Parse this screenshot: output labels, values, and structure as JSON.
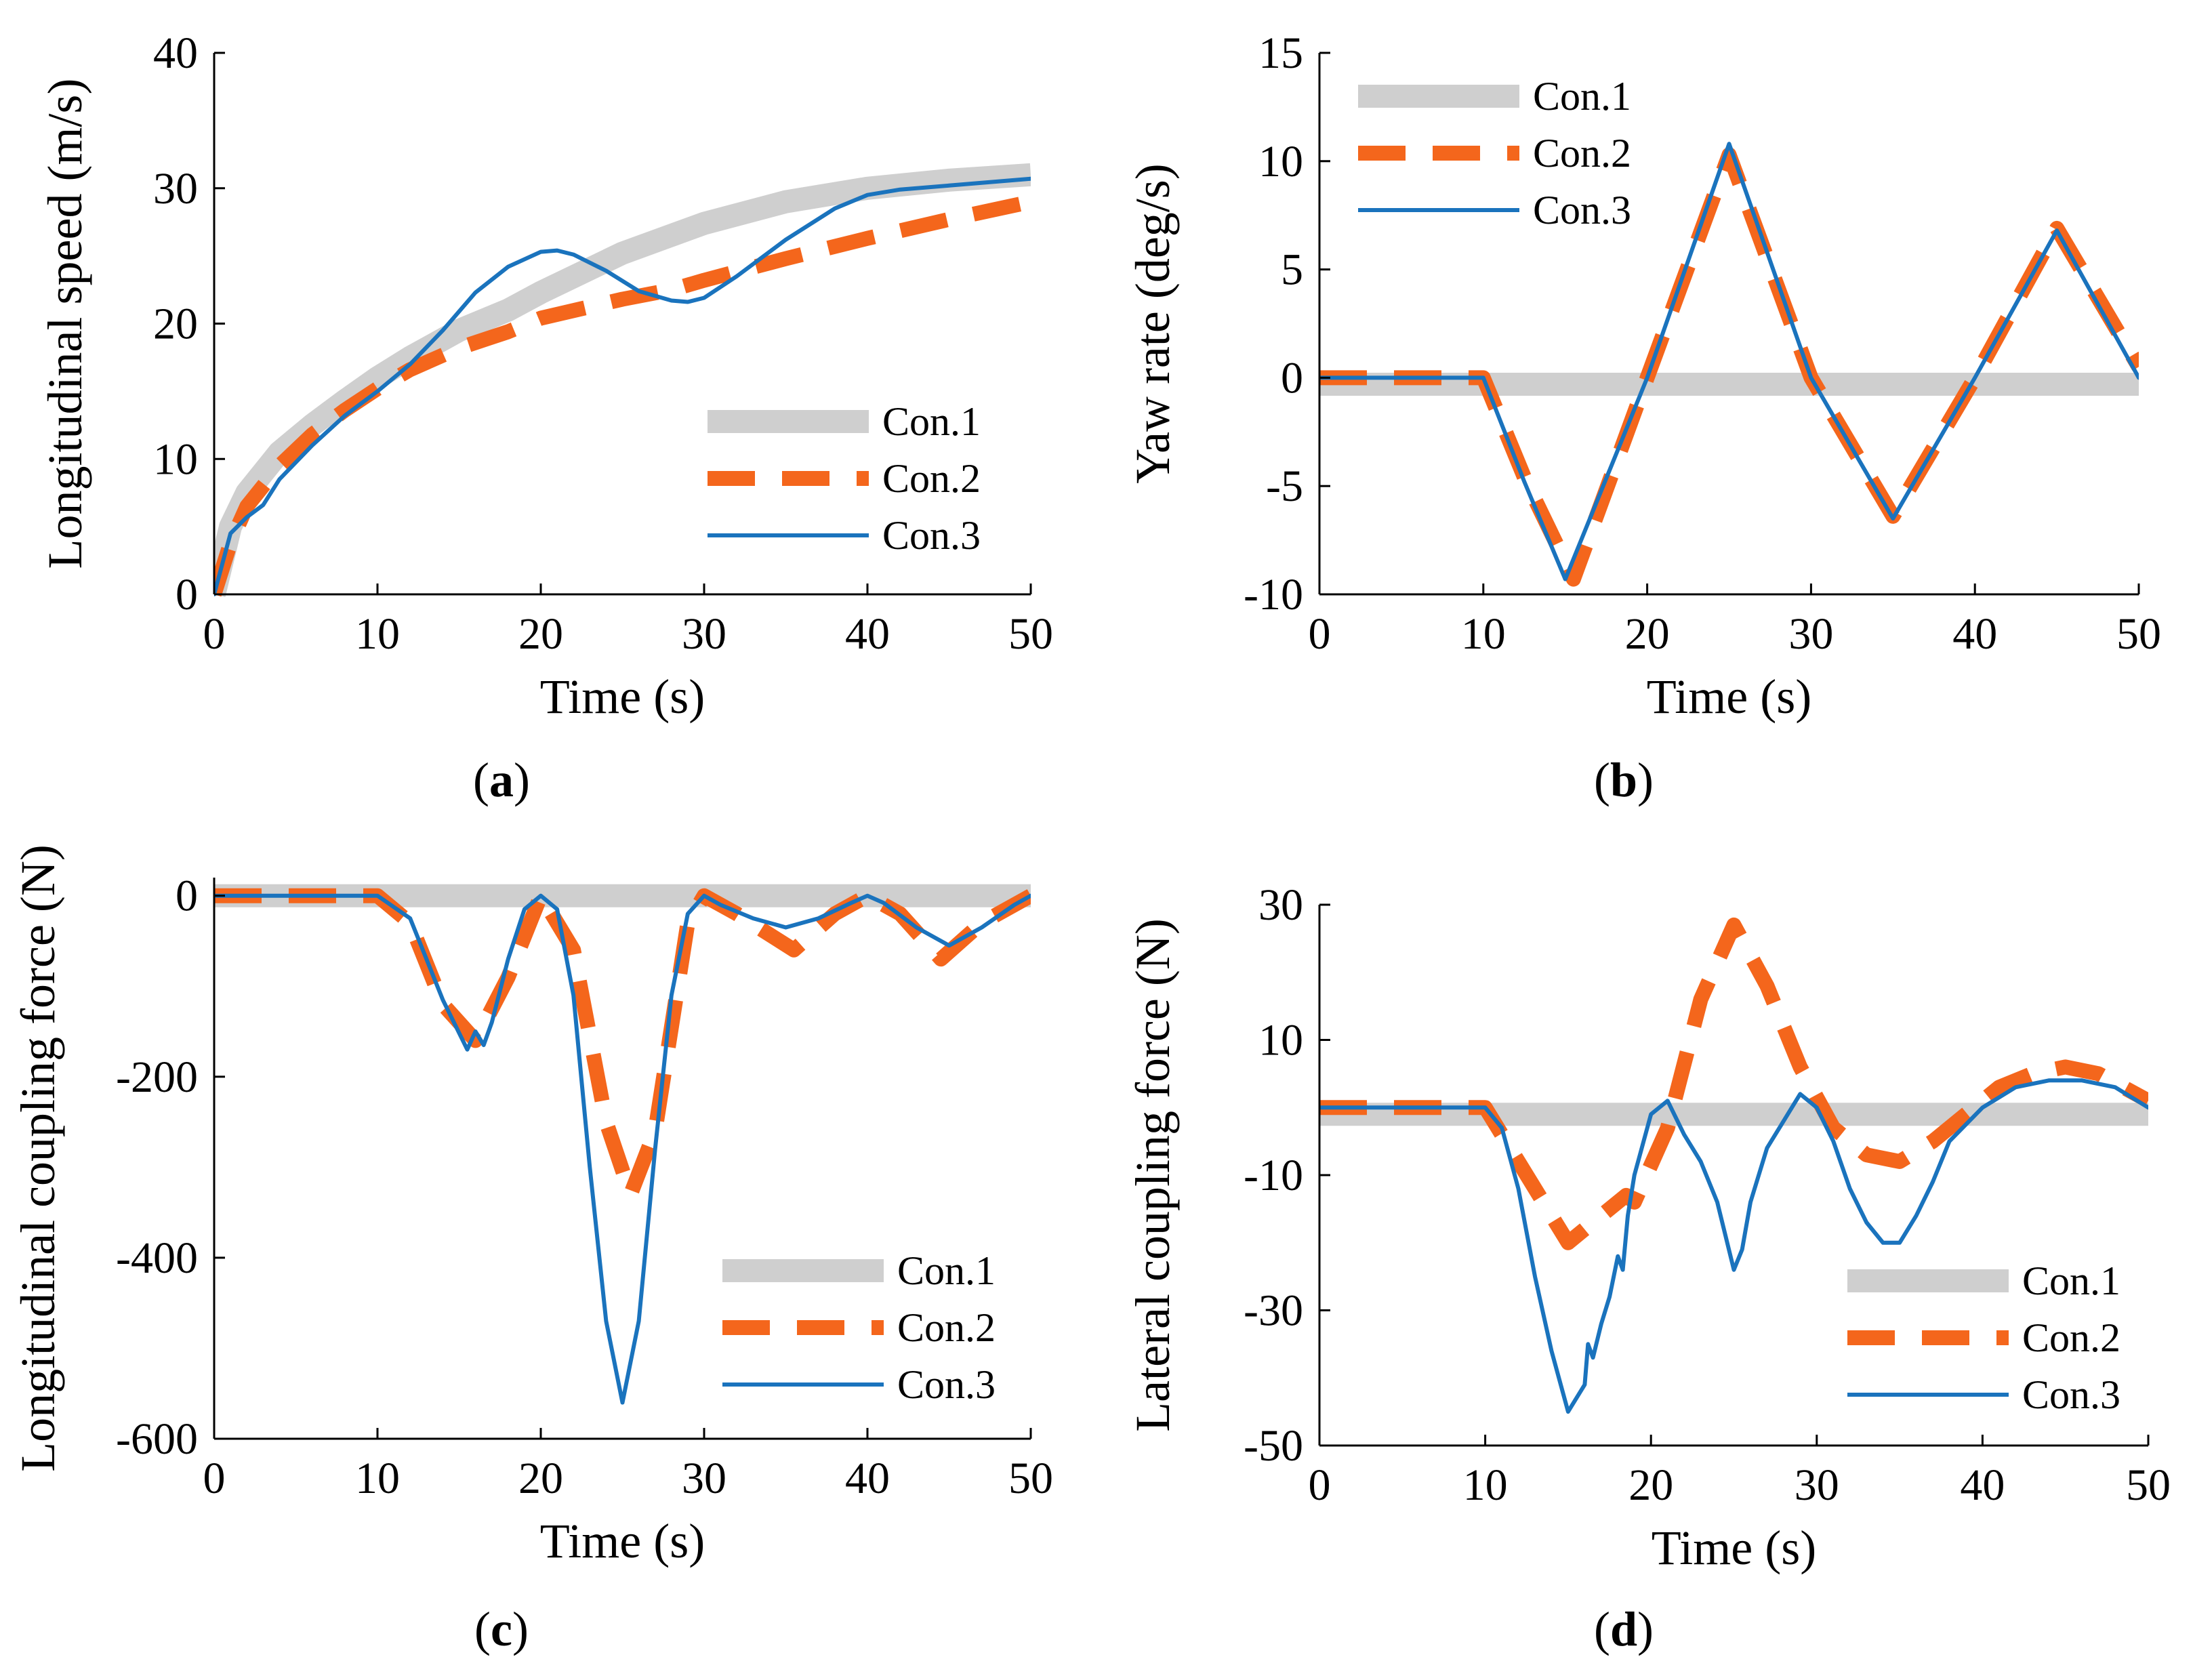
{
  "colors": {
    "con1": "#cfcfcf",
    "con2": "#f4661c",
    "con3": "#1a73bd"
  },
  "legend_labels": [
    "Con.1",
    "Con.2",
    "Con.3"
  ],
  "chart_data": [
    {
      "id": "a",
      "type": "line",
      "caption_letter": "a",
      "xlabel": "Time (s)",
      "ylabel": "Longitudinal speed (m/s)",
      "xlim": [
        0,
        50
      ],
      "ylim": [
        0,
        40
      ],
      "xticks": [
        0,
        10,
        20,
        30,
        40,
        50
      ],
      "yticks": [
        0,
        10,
        20,
        30,
        40
      ],
      "legend_position": "bottom-right",
      "series": [
        {
          "name": "Con.1",
          "x": [
            0,
            1,
            2,
            4,
            6,
            8,
            10,
            12,
            15,
            18,
            20,
            25,
            30,
            35,
            40,
            45,
            50
          ],
          "y": [
            0,
            5,
            7.5,
            10.5,
            12.5,
            14.3,
            16,
            17.5,
            19.5,
            21,
            22.3,
            25.2,
            27.4,
            29,
            30,
            30.6,
            31
          ]
        },
        {
          "name": "Con.2",
          "x": [
            0,
            1,
            2,
            4,
            6,
            8,
            10,
            12,
            15,
            18,
            20,
            25,
            28,
            30,
            35,
            40,
            45,
            50
          ],
          "y": [
            0,
            3.8,
            6.5,
            9.5,
            11.8,
            13.6,
            15.2,
            16.6,
            18.2,
            19.4,
            20.4,
            21.8,
            22.5,
            23.2,
            24.8,
            26.3,
            27.7,
            29
          ]
        },
        {
          "name": "Con.3",
          "x": [
            0,
            1,
            2,
            3,
            4,
            6,
            8,
            10,
            12,
            14,
            16,
            18,
            20,
            21,
            22,
            24,
            26,
            28,
            29,
            30,
            32,
            35,
            38,
            40,
            42,
            45,
            48,
            50
          ],
          "y": [
            0,
            4.5,
            5.7,
            6.6,
            8.5,
            11,
            13.2,
            15,
            17,
            19.5,
            22.3,
            24.2,
            25.3,
            25.4,
            25.1,
            23.9,
            22.4,
            21.7,
            21.6,
            21.9,
            23.5,
            26.2,
            28.5,
            29.5,
            29.9,
            30.2,
            30.5,
            30.7
          ]
        }
      ]
    },
    {
      "id": "b",
      "type": "line",
      "caption_letter": "b",
      "xlabel": "Time (s)",
      "ylabel": "Yaw rate (deg/s)",
      "xlim": [
        0,
        50
      ],
      "ylim": [
        -10,
        15
      ],
      "xticks": [
        0,
        10,
        20,
        30,
        40,
        50
      ],
      "yticks": [
        -10,
        -5,
        0,
        5,
        10,
        15
      ],
      "legend_position": "top-left",
      "series": [
        {
          "name": "Con.1",
          "x": [
            0,
            50
          ],
          "y": [
            -0.3,
            -0.3
          ]
        },
        {
          "name": "Con.2",
          "x": [
            0,
            10,
            12.5,
            15.5,
            20,
            25,
            30,
            35,
            40,
            45,
            50
          ],
          "y": [
            0,
            0,
            -4.6,
            -9.3,
            0,
            10.3,
            0,
            -6.4,
            0,
            6.9,
            0.5
          ]
        },
        {
          "name": "Con.3",
          "x": [
            0,
            10,
            12.5,
            15,
            20,
            25,
            30,
            35,
            40,
            45,
            50
          ],
          "y": [
            0,
            0,
            -4.8,
            -9.3,
            0,
            10.8,
            0,
            -6.5,
            0,
            6.8,
            0
          ]
        }
      ]
    },
    {
      "id": "c",
      "type": "line",
      "caption_letter": "c",
      "xlabel": "Time (s)",
      "ylabel": "Longitudinal coupling force (N)",
      "xlim": [
        0,
        50
      ],
      "ylim": [
        -600,
        20
      ],
      "xticks": [
        0,
        10,
        20,
        30,
        40,
        50
      ],
      "yticks": [
        -600,
        -400,
        -200,
        0
      ],
      "legend_position": "bottom-right",
      "series": [
        {
          "name": "Con.1",
          "x": [
            0,
            50
          ],
          "y": [
            0,
            0
          ]
        },
        {
          "name": "Con.2",
          "x": [
            0,
            10,
            12,
            14,
            16,
            18,
            20,
            22,
            24,
            25.5,
            27,
            29,
            30,
            32,
            35.5,
            38,
            40,
            42,
            44.5,
            47,
            50
          ],
          "y": [
            0,
            0,
            -30,
            -120,
            -160,
            -90,
            0,
            -60,
            -250,
            -330,
            -260,
            -30,
            0,
            -20,
            -60,
            -20,
            0,
            -20,
            -70,
            -30,
            0
          ]
        },
        {
          "name": "Con.3",
          "x": [
            0,
            10,
            12,
            14,
            15.5,
            16,
            16.5,
            17,
            18,
            19,
            20,
            21,
            22,
            23,
            24,
            25,
            26,
            27,
            28,
            29,
            30,
            31,
            33,
            35,
            37,
            39,
            40,
            41,
            43,
            45,
            47,
            49,
            50
          ],
          "y": [
            0,
            0,
            -25,
            -115,
            -170,
            -150,
            -165,
            -140,
            -70,
            -15,
            0,
            -15,
            -110,
            -300,
            -470,
            -560,
            -470,
            -280,
            -110,
            -20,
            0,
            -10,
            -25,
            -35,
            -25,
            -8,
            0,
            -8,
            -35,
            -55,
            -35,
            -10,
            0
          ]
        }
      ]
    },
    {
      "id": "d",
      "type": "line",
      "caption_letter": "d",
      "xlabel": "Time (s)",
      "ylabel": "Lateral coupling force (N)",
      "xlim": [
        0,
        50
      ],
      "ylim": [
        -50,
        30
      ],
      "xticks": [
        0,
        10,
        20,
        30,
        40,
        50
      ],
      "yticks": [
        -50,
        -30,
        -10,
        10,
        30
      ],
      "legend_position": "bottom-right",
      "series": [
        {
          "name": "Con.1",
          "x": [
            0,
            50
          ],
          "y": [
            -1,
            -1
          ]
        },
        {
          "name": "Con.2",
          "x": [
            0,
            10,
            12,
            15,
            17,
            18.5,
            19,
            21,
            23,
            25,
            27,
            29,
            31,
            33,
            35,
            37,
            39,
            41,
            43,
            45,
            47,
            50
          ],
          "y": [
            0,
            0,
            -8,
            -20,
            -16,
            -13,
            -14,
            -3,
            16,
            27,
            18,
            6,
            -3,
            -7,
            -8,
            -5,
            -1,
            3,
            5,
            6,
            5,
            1
          ]
        },
        {
          "name": "Con.3",
          "x": [
            0,
            10,
            11,
            12,
            13,
            14,
            15,
            15.5,
            16,
            16.2,
            16.5,
            17,
            17.5,
            18,
            18.3,
            18.6,
            19,
            20,
            21,
            22,
            23,
            24,
            25,
            25.5,
            26,
            27,
            28,
            29,
            30,
            31,
            32,
            33,
            34,
            35,
            36,
            37,
            38,
            40,
            42,
            44,
            46,
            48,
            50
          ],
          "y": [
            0,
            0,
            -3,
            -12,
            -25,
            -36,
            -45,
            -43,
            -41,
            -35,
            -37,
            -32,
            -28,
            -22,
            -24,
            -16,
            -10,
            -1,
            1,
            -4,
            -8,
            -14,
            -24,
            -21,
            -14,
            -6,
            -2,
            2,
            0,
            -5,
            -12,
            -17,
            -20,
            -20,
            -16,
            -11,
            -5,
            0,
            3,
            4,
            4,
            3,
            0
          ]
        }
      ]
    }
  ]
}
